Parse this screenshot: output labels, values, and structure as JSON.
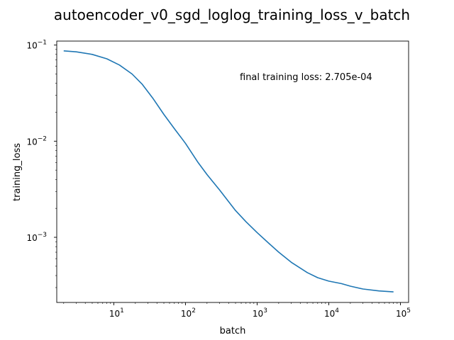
{
  "chart_data": {
    "type": "line",
    "title": "autoencoder_v0_sgd_loglog_training_loss_v_batch",
    "xlabel": "batch",
    "ylabel": "training_loss",
    "xscale": "log",
    "yscale": "log",
    "xlim": [
      1.6,
      130000
    ],
    "ylim": [
      0.00021,
      0.11
    ],
    "x_ticks": [
      {
        "value": 10,
        "base": "10",
        "exp": "1"
      },
      {
        "value": 100,
        "base": "10",
        "exp": "2"
      },
      {
        "value": 1000,
        "base": "10",
        "exp": "3"
      },
      {
        "value": 10000,
        "base": "10",
        "exp": "4"
      },
      {
        "value": 100000,
        "base": "10",
        "exp": "5"
      }
    ],
    "y_ticks": [
      {
        "value": 0.1,
        "base": "10",
        "exp": "−1"
      },
      {
        "value": 0.01,
        "base": "10",
        "exp": "−2"
      },
      {
        "value": 0.001,
        "base": "10",
        "exp": "−3"
      }
    ],
    "grid": false,
    "annotation": "final training loss: 2.705e-04",
    "series": [
      {
        "color": "#1f77b4",
        "x": [
          2,
          3,
          5,
          8,
          12,
          18,
          25,
          35,
          50,
          70,
          100,
          150,
          200,
          300,
          500,
          700,
          1000,
          1500,
          2000,
          3000,
          5000,
          7000,
          10000,
          15000,
          20000,
          30000,
          50000,
          80000
        ],
        "y": [
          0.087,
          0.085,
          0.08,
          0.072,
          0.062,
          0.05,
          0.039,
          0.028,
          0.019,
          0.0135,
          0.0095,
          0.006,
          0.0045,
          0.0031,
          0.0019,
          0.00145,
          0.00112,
          0.00085,
          0.0007,
          0.00055,
          0.00043,
          0.00038,
          0.00035,
          0.00033,
          0.00031,
          0.00029,
          0.000277,
          0.0002705
        ]
      }
    ]
  }
}
